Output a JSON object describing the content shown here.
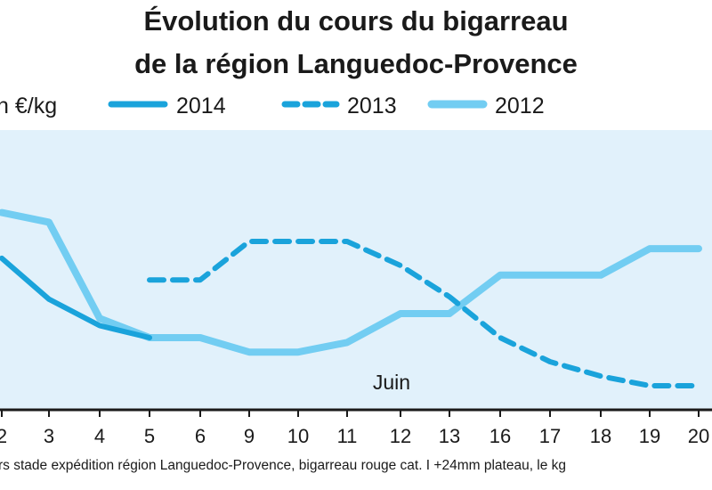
{
  "chart_data": {
    "type": "line",
    "title_lines": [
      "Évolution du cours du bigarreau",
      "de la région Languedoc-Provence"
    ],
    "unit_label": "n €/kg",
    "categories": [
      "2",
      "3",
      "4",
      "5",
      "6",
      "9",
      "10",
      "11",
      "12",
      "13",
      "16",
      "17",
      "18",
      "19",
      "20"
    ],
    "annotation": "Juin",
    "source": "rs stade expédition région Languedoc-Provence, bigarreau rouge cat. I +24mm plateau, le kg",
    "ylim": [
      0,
      10
    ],
    "grid": false,
    "legend_position": "top",
    "series": [
      {
        "name": "2014",
        "style": "solid-thick",
        "color": "#1aa3db",
        "values": [
          6.3,
          4.6,
          3.5,
          3.0,
          null,
          null,
          null,
          null,
          null,
          null,
          null,
          null,
          null,
          null,
          null
        ]
      },
      {
        "name": "2013",
        "style": "dashed",
        "color": "#1aa3db",
        "values": [
          null,
          null,
          null,
          5.4,
          5.4,
          7.0,
          7.0,
          7.0,
          6.0,
          4.7,
          3.0,
          2.0,
          1.4,
          1.0,
          1.0
        ]
      },
      {
        "name": "2012",
        "style": "solid-light",
        "color": "#72cdf2",
        "values": [
          8.2,
          7.8,
          3.8,
          3.0,
          3.0,
          2.4,
          2.4,
          2.8,
          4.0,
          4.0,
          5.6,
          5.6,
          5.6,
          6.7,
          6.7
        ]
      }
    ]
  },
  "colors": {
    "plot_background": "#e1f1fb",
    "axis": "#1a1a1a"
  }
}
